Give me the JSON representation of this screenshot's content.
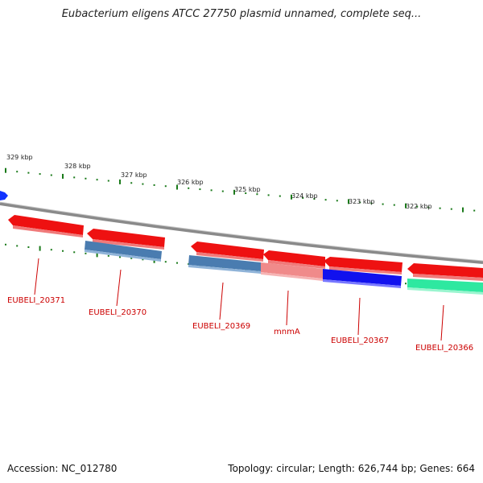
{
  "header": {
    "title": "Eubacterium eligens ATCC 27750 plasmid unnamed, complete seq..."
  },
  "footer": {
    "accession": "Accession: NC_012780",
    "summary": "Topology: circular; Length: 626,744 bp; Genes: 664"
  },
  "scale_labels": [
    "329 kbp",
    "328 kbp",
    "327 kbp",
    "326 kbp",
    "325 kbp",
    "324 kbp",
    "323 kbp",
    "322 kbp"
  ],
  "genes": [
    {
      "label": "EUBELI_20371",
      "track": "forward",
      "color": "#ee1111"
    },
    {
      "label": "EUBELI_20370",
      "track": "reverse",
      "color": "#4a7cb0"
    },
    {
      "label": "",
      "track": "forward",
      "color": "#ee1111"
    },
    {
      "label": "EUBELI_20369",
      "track": "reverse",
      "color": "#4a7cb0"
    },
    {
      "label": "",
      "track": "forward",
      "color": "#ee1111"
    },
    {
      "label": "mnmA",
      "track": "reverse",
      "color": "#f08a8a"
    },
    {
      "label": "",
      "track": "forward",
      "color": "#ee1111"
    },
    {
      "label": "EUBELI_20367",
      "track": "reverse",
      "color": "#1111ee"
    },
    {
      "label": "",
      "track": "forward",
      "color": "#ee1111"
    },
    {
      "label": "EUBELI_20366",
      "track": "reverse",
      "color": "#2ee8a0"
    },
    {
      "label": "",
      "track": "outer",
      "color": "#1133ff"
    }
  ],
  "colors": {
    "backbone": "#8a8a8a",
    "ticks": "#1a7a1a",
    "label": "#cc0000"
  }
}
